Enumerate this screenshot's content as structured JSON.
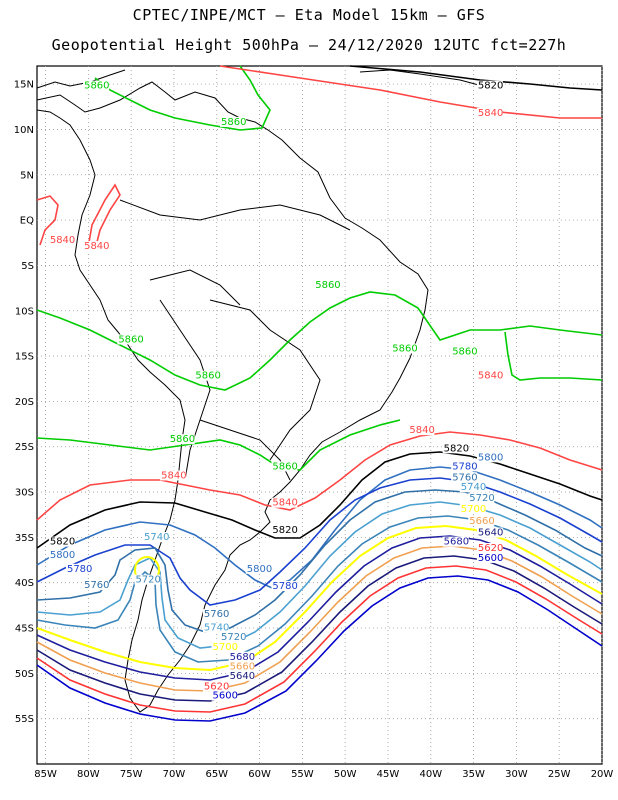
{
  "title": {
    "line1": "CPTEC/INPE/MCT –  Eta Model 15km – GFS",
    "line2": "Geopotential Height 500hPa – 24/12/2020 12UTC fct=227h"
  },
  "axes": {
    "lat_labels": [
      "15N",
      "10N",
      "5N",
      "EQ",
      "5S",
      "10S",
      "15S",
      "20S",
      "25S",
      "30S",
      "35S",
      "40S",
      "45S",
      "50S",
      "55S"
    ],
    "lon_labels": [
      "85W",
      "80W",
      "75W",
      "70W",
      "65W",
      "60W",
      "55W",
      "50W",
      "45W",
      "40W",
      "35W",
      "30W",
      "25W",
      "20W"
    ],
    "lat_range": [
      17,
      -60
    ],
    "lon_range": [
      -86,
      -20
    ],
    "grid": true
  },
  "colors": {
    "c5600": "#0000cc",
    "c5620": "#ff3333",
    "c5640": "#1a1a7a",
    "c5660": "#f0a050",
    "c5680": "#1e1e9e",
    "c5700": "#ffff00",
    "c5720": "#3a84b8",
    "c5740": "#4aa0d0",
    "c5760": "#3070a8",
    "c5780": "#1a40d0",
    "c5800": "#3070c0",
    "c5820": "#000000",
    "c5840": "#ff4444",
    "c5860": "#00cc00",
    "coast": "#000000"
  },
  "contour_labels": [
    {
      "text": "5860",
      "color": "#00cc00",
      "lon": -80.5,
      "lat": 14.5
    },
    {
      "text": "5820",
      "color": "#000000",
      "lon": -34.5,
      "lat": 14.5
    },
    {
      "text": "5840",
      "color": "#ff4444",
      "lon": -34.5,
      "lat": 11.5
    },
    {
      "text": "5860",
      "color": "#00cc00",
      "lon": -64.5,
      "lat": 10.5
    },
    {
      "text": "5840",
      "color": "#ff4444",
      "lon": -84.5,
      "lat": -2.5
    },
    {
      "text": "5840",
      "color": "#ff4444",
      "lon": -80.5,
      "lat": -3.2
    },
    {
      "text": "5860",
      "color": "#00cc00",
      "lon": -53.5,
      "lat": -7.5
    },
    {
      "text": "5860",
      "color": "#00cc00",
      "lon": -76.5,
      "lat": -13.5
    },
    {
      "text": "5860",
      "color": "#00cc00",
      "lon": -67.5,
      "lat": -17.5
    },
    {
      "text": "5860",
      "color": "#00cc00",
      "lon": -44.5,
      "lat": -14.5
    },
    {
      "text": "5860",
      "color": "#00cc00",
      "lon": -37.5,
      "lat": -14.8
    },
    {
      "text": "5840",
      "color": "#ff4444",
      "lon": -34.5,
      "lat": -17.5
    },
    {
      "text": "5840",
      "color": "#ff4444",
      "lon": -42.5,
      "lat": -23.5
    },
    {
      "text": "5860",
      "color": "#00cc00",
      "lon": -70.5,
      "lat": -24.5
    },
    {
      "text": "5860",
      "color": "#00cc00",
      "lon": -58.5,
      "lat": -27.5
    },
    {
      "text": "5820",
      "color": "#000000",
      "lon": -38.5,
      "lat": -25.5
    },
    {
      "text": "5800",
      "color": "#3070c0",
      "lon": -34.5,
      "lat": -26.5
    },
    {
      "text": "5780",
      "color": "#1a40d0",
      "lon": -37.5,
      "lat": -27.5
    },
    {
      "text": "5840",
      "color": "#ff4444",
      "lon": -71.5,
      "lat": -28.5
    },
    {
      "text": "5760",
      "color": "#3070a8",
      "lon": -37.5,
      "lat": -28.7
    },
    {
      "text": "5740",
      "color": "#4aa0d0",
      "lon": -36.5,
      "lat": -29.8
    },
    {
      "text": "5720",
      "color": "#3a84b8",
      "lon": -35.5,
      "lat": -31
    },
    {
      "text": "5840",
      "color": "#ff4444",
      "lon": -58.5,
      "lat": -31.5
    },
    {
      "text": "5700",
      "color": "#ffff00",
      "lon": -36.5,
      "lat": -32.2
    },
    {
      "text": "5660",
      "color": "#f0a050",
      "lon": -35.5,
      "lat": -33.5
    },
    {
      "text": "5820",
      "color": "#000000",
      "lon": -58.5,
      "lat": -34.5
    },
    {
      "text": "5640",
      "color": "#1a1a7a",
      "lon": -34.5,
      "lat": -34.8
    },
    {
      "text": "5740",
      "color": "#4aa0d0",
      "lon": -73.5,
      "lat": -35.3
    },
    {
      "text": "5680",
      "color": "#1e1e9e",
      "lon": -38.5,
      "lat": -35.8
    },
    {
      "text": "5820",
      "color": "#000000",
      "lon": -84.5,
      "lat": -35.8
    },
    {
      "text": "5620",
      "color": "#ff3333",
      "lon": -34.5,
      "lat": -36.5
    },
    {
      "text": "5800",
      "color": "#3070c0",
      "lon": -84.5,
      "lat": -37.3
    },
    {
      "text": "5600",
      "color": "#0000cc",
      "lon": -34.5,
      "lat": -37.6
    },
    {
      "text": "5780",
      "color": "#1a40d0",
      "lon": -82.5,
      "lat": -38.8
    },
    {
      "text": "5800",
      "color": "#3070c0",
      "lon": -61.5,
      "lat": -38.8
    },
    {
      "text": "5720",
      "color": "#3a84b8",
      "lon": -74.5,
      "lat": -40
    },
    {
      "text": "5760",
      "color": "#3070a8",
      "lon": -80.5,
      "lat": -40.6
    },
    {
      "text": "5780",
      "color": "#1a40d0",
      "lon": -58.5,
      "lat": -40.7
    },
    {
      "text": "5760",
      "color": "#3070a8",
      "lon": -66.5,
      "lat": -43.8
    },
    {
      "text": "5740",
      "color": "#4aa0d0",
      "lon": -66.5,
      "lat": -45.3
    },
    {
      "text": "5720",
      "color": "#3a84b8",
      "lon": -64.5,
      "lat": -46.3
    },
    {
      "text": "5700",
      "color": "#ffff00",
      "lon": -65.5,
      "lat": -47.4
    },
    {
      "text": "5680",
      "color": "#1e1e9e",
      "lon": -63.5,
      "lat": -48.5
    },
    {
      "text": "5660",
      "color": "#f0a050",
      "lon": -63.5,
      "lat": -49.6
    },
    {
      "text": "5640",
      "color": "#1a1a7a",
      "lon": -63.5,
      "lat": -50.6
    },
    {
      "text": "5620",
      "color": "#ff3333",
      "lon": -66.5,
      "lat": -51.8
    },
    {
      "text": "5600",
      "color": "#0000cc",
      "lon": -65.5,
      "lat": -52.8
    }
  ]
}
